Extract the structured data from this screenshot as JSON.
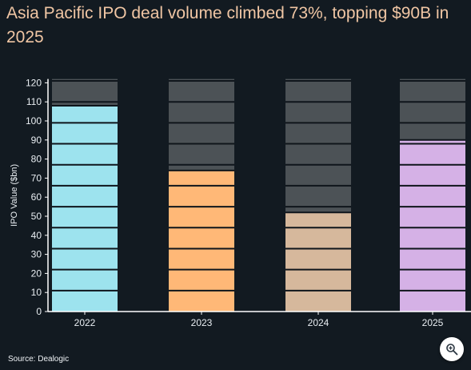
{
  "title": "Asia Pacific IPO deal volume climbed 73%, topping $90B in 2025",
  "source": "Source: Dealogic",
  "zoom_icon": "zoom-in-icon",
  "colors": {
    "background": "#121a21",
    "title": "#f0c6a4",
    "remainder": "#4c5256",
    "segment_line": "#0f151b",
    "axis": "#ffffff",
    "text": "#e9eef2"
  },
  "chart_data": {
    "type": "bar",
    "title": "Asia Pacific IPO deal volume climbed 73%, topping $90B in 2025",
    "xlabel": "",
    "ylabel": "IPO Value ($bn)",
    "ylim": [
      0,
      122
    ],
    "yticks": [
      0,
      10,
      20,
      30,
      40,
      50,
      60,
      70,
      80,
      90,
      100,
      110,
      120
    ],
    "categories": [
      "2022",
      "2023",
      "2024",
      "2025"
    ],
    "values": [
      108,
      74,
      52,
      90
    ],
    "bar_colors": [
      "#9de3ee",
      "#ffb877",
      "#d6b89c",
      "#d5b1e6"
    ],
    "segment_size": 11,
    "grid": false,
    "legend": "none"
  }
}
